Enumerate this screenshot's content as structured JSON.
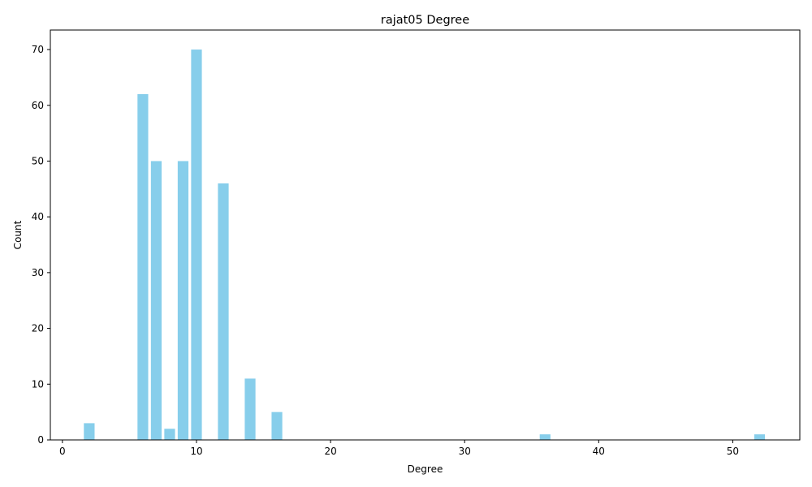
{
  "chart_data": {
    "type": "bar",
    "title": "rajat05 Degree",
    "xlabel": "Degree",
    "ylabel": "Count",
    "x": [
      2,
      6,
      7,
      8,
      9,
      10,
      12,
      14,
      16,
      36,
      52
    ],
    "values": [
      3,
      62,
      50,
      2,
      50,
      70,
      46,
      11,
      5,
      1,
      1
    ],
    "xlim": [
      -0.9,
      55
    ],
    "ylim": [
      0,
      73.5
    ],
    "xticks": [
      0,
      10,
      20,
      30,
      40,
      50
    ],
    "yticks": [
      0,
      10,
      20,
      30,
      40,
      50,
      60,
      70
    ],
    "bar_width": 0.8,
    "bar_color": "#87ceeb",
    "grid": false,
    "legend": "none"
  }
}
